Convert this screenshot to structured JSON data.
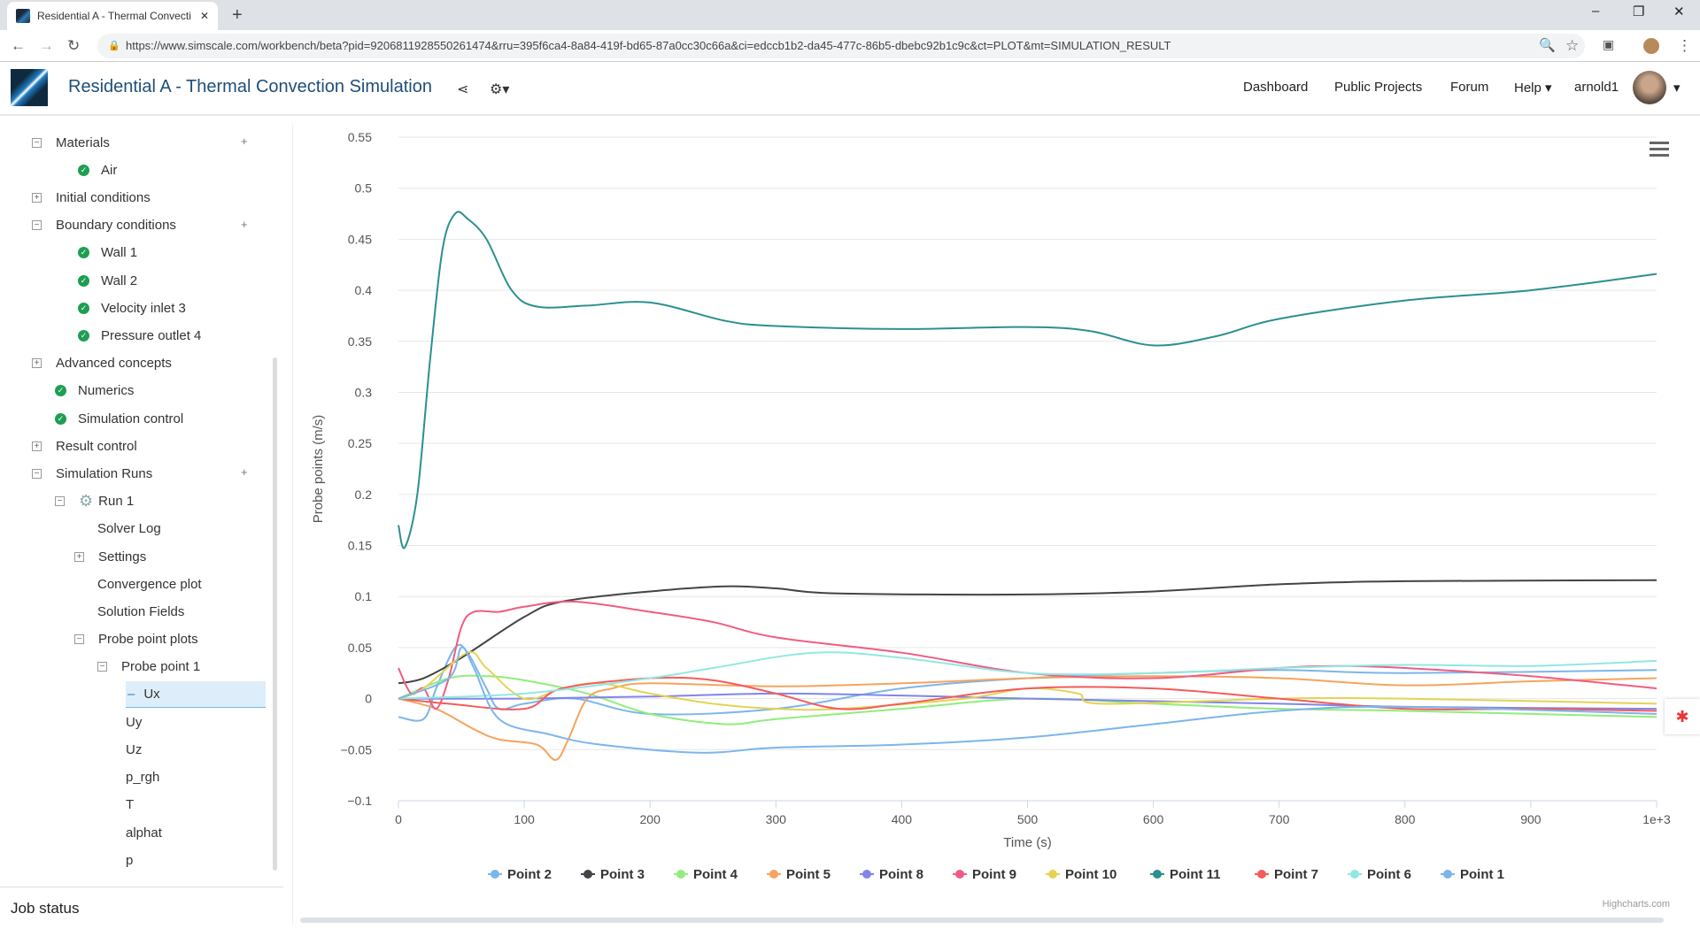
{
  "browser": {
    "tab_title": "Residential A - Thermal Convecti",
    "url": "https://www.simscale.com/workbench/beta?pid=9206811928550261474&rru=395f6ca4-8a84-419f-bd65-87a0cc30c66a&ci=edccb1b2-da45-477c-86b5-dbebc92b1c9c&ct=PLOT&mt=SIMULATION_RESULT"
  },
  "header": {
    "title": "Residential A - Thermal Convection Simulation",
    "nav": [
      "Dashboard",
      "Public Projects",
      "Forum",
      "Help"
    ],
    "user": "arnold1"
  },
  "sidebar": {
    "items": [
      {
        "label": "Materials",
        "level": 0,
        "toggle": "−",
        "plus": true
      },
      {
        "label": "Air",
        "level": 1,
        "check": true
      },
      {
        "label": "Initial conditions",
        "level": 0,
        "toggle": "+"
      },
      {
        "label": "Boundary conditions",
        "level": 0,
        "toggle": "−",
        "plus": true
      },
      {
        "label": "Wall 1",
        "level": 1,
        "check": true
      },
      {
        "label": "Wall 2",
        "level": 1,
        "check": true
      },
      {
        "label": "Velocity inlet 3",
        "level": 1,
        "check": true
      },
      {
        "label": "Pressure outlet 4",
        "level": 1,
        "check": true
      },
      {
        "label": "Advanced concepts",
        "level": 0,
        "toggle": "+"
      },
      {
        "label": "Numerics",
        "level": 0.5,
        "check": true
      },
      {
        "label": "Simulation control",
        "level": 0.5,
        "check": true
      },
      {
        "label": "Result control",
        "level": 0,
        "toggle": "+"
      },
      {
        "label": "Simulation Runs",
        "level": 0,
        "toggle": "−",
        "plus": true
      },
      {
        "label": "Run 1",
        "level": 1,
        "toggle": "−",
        "gear": true
      },
      {
        "label": "Solver Log",
        "level": 2
      },
      {
        "label": "Settings",
        "level": 2,
        "toggle": "+"
      },
      {
        "label": "Convergence plot",
        "level": 2
      },
      {
        "label": "Solution Fields",
        "level": 2
      },
      {
        "label": "Probe point plots",
        "level": 2,
        "toggle": "−"
      },
      {
        "label": "Probe point 1",
        "level": 3,
        "toggle": "−"
      },
      {
        "label": "Ux",
        "level": 4,
        "selected": true
      },
      {
        "label": "Uy",
        "level": 4
      },
      {
        "label": "Uz",
        "level": 4
      },
      {
        "label": "p_rgh",
        "level": 4
      },
      {
        "label": "T",
        "level": 4
      },
      {
        "label": "alphat",
        "level": 4
      },
      {
        "label": "p",
        "level": 4
      }
    ],
    "job_status": "Job status"
  },
  "chart_data": {
    "type": "line",
    "title": "",
    "xlabel": "Time (s)",
    "ylabel": "Probe points (m/s)",
    "xlim": [
      0,
      1000
    ],
    "ylim": [
      -0.1,
      0.55
    ],
    "xticks": [
      0,
      100,
      200,
      300,
      400,
      500,
      600,
      700,
      800,
      900,
      1000
    ],
    "xtick_labels": [
      "0",
      "100",
      "200",
      "300",
      "400",
      "500",
      "600",
      "700",
      "800",
      "900",
      "1e+3"
    ],
    "yticks": [
      -0.1,
      -0.05,
      0,
      0.05,
      0.1,
      0.15,
      0.2,
      0.25,
      0.3,
      0.35,
      0.4,
      0.45,
      0.5,
      0.55
    ],
    "ytick_labels": [
      "−0.1",
      "−0.05",
      "0",
      "0.05",
      "0.1",
      "0.15",
      "0.2",
      "0.25",
      "0.3",
      "0.35",
      "0.4",
      "0.45",
      "0.5",
      "0.55"
    ],
    "legend_position": "bottom",
    "credits": "Highcharts.com",
    "grid": true,
    "series": [
      {
        "name": "Point 2",
        "color": "#7cb5ec",
        "x": [
          0,
          20,
          30,
          45,
          55,
          70,
          80,
          100,
          140,
          200,
          300,
          400,
          500,
          600,
          700,
          800,
          1000
        ],
        "y": [
          -0.018,
          -0.02,
          0.01,
          0.05,
          0.045,
          0.01,
          -0.01,
          -0.005,
          0,
          -0.015,
          -0.01,
          0.01,
          0.02,
          0.025,
          0.028,
          0.025,
          0.028
        ]
      },
      {
        "name": "Point 3",
        "color": "#434348",
        "x": [
          0,
          20,
          50,
          100,
          130,
          200,
          260,
          300,
          350,
          500,
          600,
          700,
          800,
          1000
        ],
        "y": [
          0.015,
          0.02,
          0.04,
          0.08,
          0.095,
          0.105,
          0.11,
          0.108,
          0.103,
          0.102,
          0.105,
          0.112,
          0.115,
          0.116
        ]
      },
      {
        "name": "Point 4",
        "color": "#90ed7d",
        "x": [
          0,
          40,
          70,
          100,
          150,
          200,
          260,
          300,
          400,
          500,
          600,
          700,
          800,
          1000
        ],
        "y": [
          0,
          0.02,
          0.022,
          0.018,
          0.005,
          -0.015,
          -0.025,
          -0.02,
          -0.01,
          0,
          -0.005,
          -0.01,
          -0.012,
          -0.018
        ]
      },
      {
        "name": "Point 5",
        "color": "#f7a35c",
        "x": [
          0,
          30,
          60,
          80,
          110,
          125,
          135,
          150,
          170,
          200,
          300,
          400,
          500,
          600,
          700,
          800,
          900,
          1000
        ],
        "y": [
          0,
          -0.01,
          -0.03,
          -0.04,
          -0.045,
          -0.06,
          -0.04,
          0,
          0.01,
          0.015,
          0.012,
          0.015,
          0.02,
          0.022,
          0.02,
          0.013,
          0.017,
          0.02
        ]
      },
      {
        "name": "Point 8",
        "color": "#8085e9",
        "x": [
          0,
          100,
          200,
          300,
          400,
          500,
          700,
          800,
          1000
        ],
        "y": [
          0,
          0,
          0.002,
          0.005,
          0.003,
          0,
          -0.005,
          -0.008,
          -0.01
        ]
      },
      {
        "name": "Point 9",
        "color": "#f15c80",
        "x": [
          0,
          10,
          20,
          30,
          40,
          50,
          60,
          80,
          100,
          140,
          200,
          250,
          300,
          400,
          500,
          600,
          700,
          750,
          800,
          900,
          1000
        ],
        "y": [
          0.03,
          0.005,
          0.01,
          -0.01,
          0.02,
          0.07,
          0.085,
          0.085,
          0.09,
          0.095,
          0.085,
          0.075,
          0.06,
          0.045,
          0.025,
          0.02,
          0.03,
          0.032,
          0.03,
          0.022,
          0.01
        ]
      },
      {
        "name": "Point 10",
        "color": "#e4d354",
        "x": [
          0,
          20,
          55,
          70,
          100,
          130,
          160,
          200,
          250,
          300,
          350,
          450,
          500,
          540,
          560,
          700,
          800,
          1000
        ],
        "y": [
          0,
          0.01,
          0.045,
          0.03,
          0,
          0.01,
          0.015,
          0.005,
          -0.005,
          -0.01,
          -0.01,
          0,
          0.01,
          0.005,
          -0.005,
          0,
          0,
          -0.005
        ]
      },
      {
        "name": "Point 11",
        "color": "#2b908f",
        "x": [
          0,
          5,
          15,
          25,
          35,
          45,
          55,
          70,
          90,
          110,
          150,
          200,
          260,
          300,
          400,
          500,
          550,
          600,
          650,
          700,
          800,
          900,
          1000
        ],
        "y": [
          0.17,
          0.148,
          0.2,
          0.33,
          0.44,
          0.475,
          0.47,
          0.45,
          0.4,
          0.384,
          0.385,
          0.388,
          0.37,
          0.365,
          0.362,
          0.364,
          0.36,
          0.346,
          0.355,
          0.372,
          0.39,
          0.4,
          0.416
        ]
      },
      {
        "name": "Point 7",
        "color": "#f45b5b",
        "x": [
          0,
          40,
          100,
          130,
          200,
          250,
          300,
          350,
          400,
          500,
          600,
          700,
          800,
          900,
          1000
        ],
        "y": [
          0,
          -0.005,
          -0.01,
          0.01,
          0.02,
          0.018,
          0.005,
          -0.01,
          -0.005,
          0.01,
          0.01,
          0,
          -0.01,
          -0.01,
          -0.012
        ]
      },
      {
        "name": "Point 6",
        "color": "#91e8e1",
        "x": [
          0,
          100,
          200,
          250,
          330,
          400,
          500,
          600,
          700,
          800,
          900,
          1000
        ],
        "y": [
          0,
          0.005,
          0.02,
          0.03,
          0.045,
          0.04,
          0.025,
          0.025,
          0.03,
          0.033,
          0.032,
          0.037
        ]
      },
      {
        "name": "Point 1",
        "color": "#7cb5ec",
        "x": [
          0,
          40,
          50,
          60,
          80,
          120,
          160,
          240,
          300,
          400,
          500,
          600,
          700,
          800,
          1000
        ],
        "y": [
          0,
          0.02,
          0.05,
          0.03,
          -0.02,
          -0.035,
          -0.045,
          -0.053,
          -0.048,
          -0.045,
          -0.038,
          -0.025,
          -0.012,
          -0.008,
          -0.015
        ]
      }
    ]
  }
}
